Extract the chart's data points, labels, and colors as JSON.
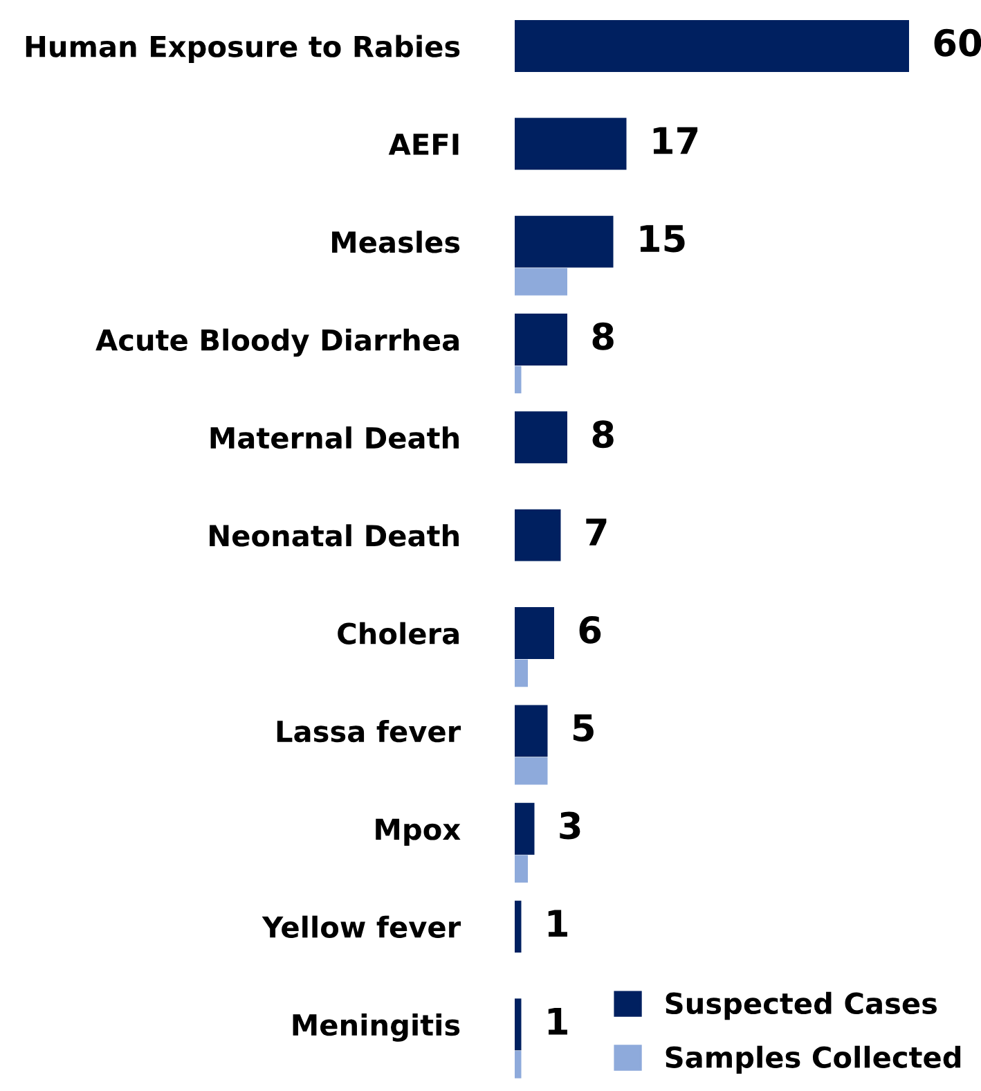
{
  "chart_data": {
    "type": "bar",
    "orientation": "horizontal",
    "categories": [
      "Human Exposure to Rabies",
      "AEFI",
      "Measles",
      "Acute Bloody Diarrhea",
      "Maternal Death",
      "Neonatal Death",
      "Cholera",
      "Lassa fever",
      "Mpox",
      "Yellow fever",
      "Meningitis"
    ],
    "series": [
      {
        "name": "Suspected Cases",
        "color": "#002060",
        "values": [
          60,
          17,
          15,
          8,
          8,
          7,
          6,
          5,
          3,
          1,
          1
        ],
        "value_labels": [
          "60",
          "17",
          "15",
          "8",
          "8",
          "7",
          "6",
          "5",
          "3",
          "1",
          "1"
        ]
      },
      {
        "name": "Samples Collected",
        "color": "#8eaadb",
        "values": [
          0,
          0,
          8,
          1,
          0,
          0,
          2,
          5,
          2,
          0,
          1
        ]
      }
    ],
    "tick_labels": "y",
    "legend": "bottom right",
    "grid": false
  }
}
